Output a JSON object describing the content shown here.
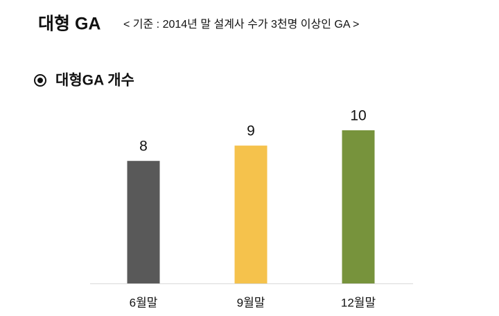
{
  "chart_data": {
    "type": "bar",
    "title": "대형 GA",
    "subtitle": "< 기준 : 2014년 말 설계사 수가 3천명 이상인 GA >",
    "heading": "대형GA 개수",
    "categories": [
      "6월말",
      "9월말",
      "12월말"
    ],
    "values": [
      8,
      9,
      10
    ],
    "colors": [
      "#595959",
      "#f5c24c",
      "#77933c"
    ]
  }
}
